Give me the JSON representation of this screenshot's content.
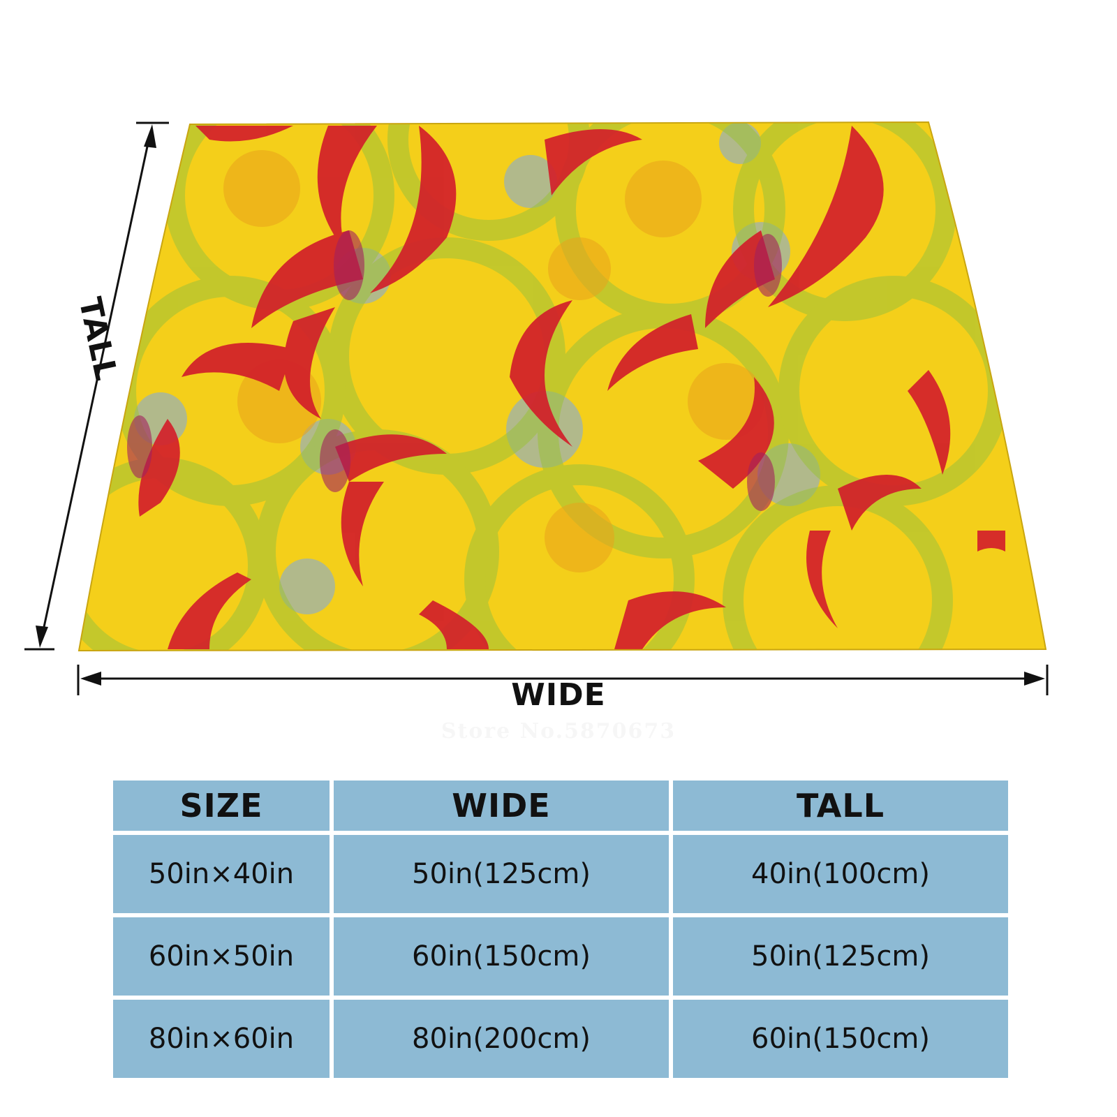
{
  "dimensions": {
    "wide_label": "WIDE",
    "tall_label": "TALL"
  },
  "watermark": "Store No.5870673",
  "colors": {
    "blanket_yellow": "#f4cf1a",
    "pattern_red": "#d21f2a",
    "pattern_green": "#9cc23a",
    "pattern_blue": "#7aa7ea",
    "table_cell": "#8dbad4"
  },
  "size_table": {
    "headers": [
      "SIZE",
      "WIDE",
      "TALL"
    ],
    "rows": [
      {
        "size": "50in×40in",
        "wide": "50in(125cm)",
        "tall": "40in(100cm)"
      },
      {
        "size": "60in×50in",
        "wide": "60in(150cm)",
        "tall": "50in(125cm)"
      },
      {
        "size": "80in×60in",
        "wide": "80in(200cm)",
        "tall": "60in(150cm)"
      }
    ]
  }
}
